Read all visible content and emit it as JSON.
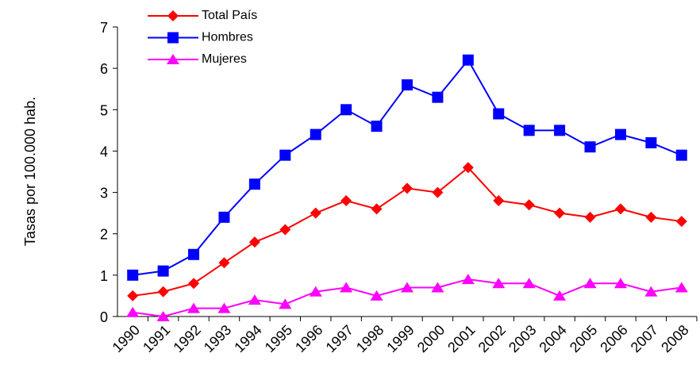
{
  "chart_data": {
    "type": "line",
    "y_label": "Tasas por 100.000 hab.",
    "categories": [
      "1990",
      "1991",
      "1992",
      "1993",
      "1994",
      "1995",
      "1996",
      "1997",
      "1998",
      "1999",
      "2000",
      "2001",
      "2002",
      "2003",
      "2004",
      "2005",
      "2006",
      "2007",
      "2008"
    ],
    "series": [
      {
        "name": "Total País",
        "color": "#ff0000",
        "marker": "diamond",
        "values": [
          0.5,
          0.6,
          0.8,
          1.3,
          1.8,
          2.1,
          2.5,
          2.8,
          2.6,
          3.1,
          3.0,
          3.6,
          2.8,
          2.7,
          2.5,
          2.4,
          2.6,
          2.4,
          2.3
        ]
      },
      {
        "name": "Hombres",
        "color": "#0000ff",
        "marker": "square",
        "values": [
          1.0,
          1.1,
          1.5,
          2.4,
          3.2,
          3.9,
          4.4,
          5.0,
          4.6,
          5.6,
          5.3,
          6.2,
          4.9,
          4.5,
          4.5,
          4.1,
          4.4,
          4.2,
          3.9
        ]
      },
      {
        "name": "Mujeres",
        "color": "#ff00ff",
        "marker": "triangle",
        "values": [
          0.1,
          0.0,
          0.2,
          0.2,
          0.4,
          0.3,
          0.6,
          0.7,
          0.5,
          0.7,
          0.7,
          0.9,
          0.8,
          0.8,
          0.5,
          0.8,
          0.8,
          0.6,
          0.7
        ]
      }
    ],
    "ylim": [
      0,
      7
    ],
    "yticks": [
      0,
      1,
      2,
      3,
      4,
      5,
      6,
      7
    ],
    "grid": false,
    "legend": "top-left"
  }
}
